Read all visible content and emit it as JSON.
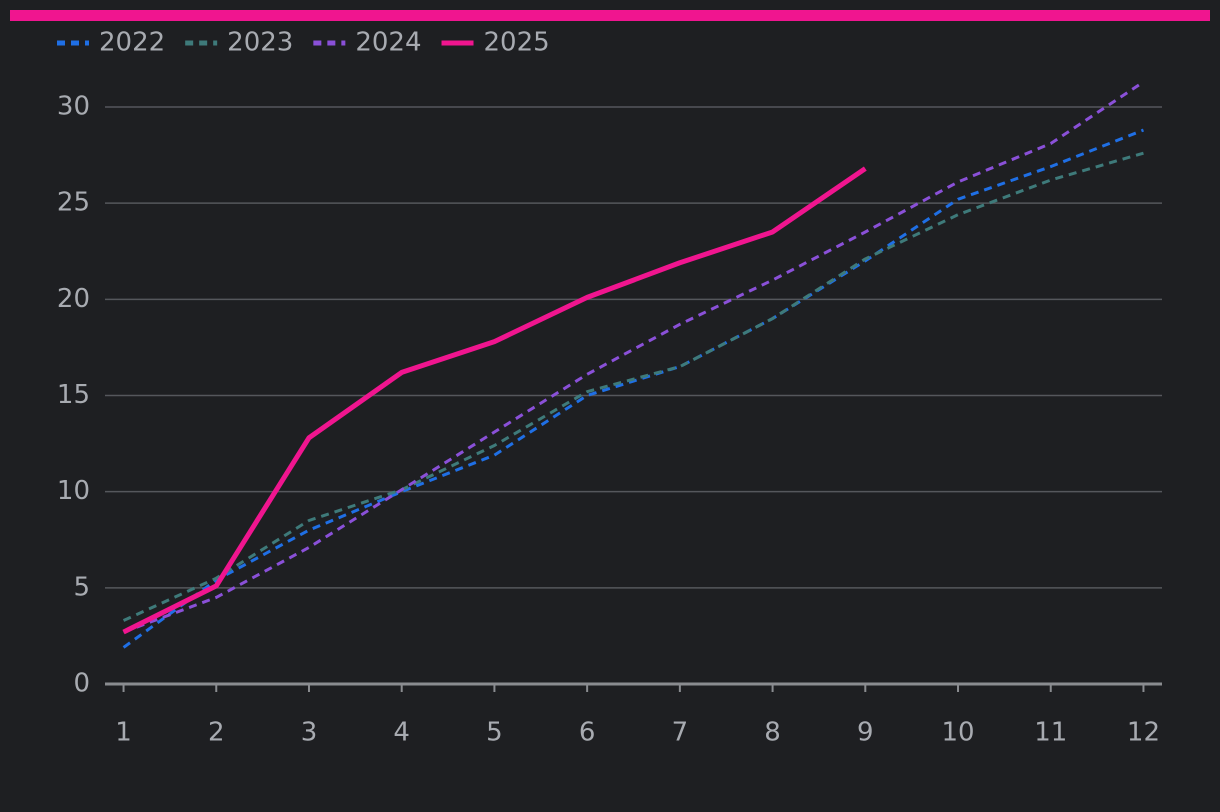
{
  "chart_data": {
    "type": "line",
    "x": [
      1,
      2,
      3,
      4,
      5,
      6,
      7,
      8,
      9,
      10,
      11,
      12
    ],
    "xlim": [
      0.8,
      12.2
    ],
    "xticks": [
      1,
      2,
      3,
      4,
      5,
      6,
      7,
      8,
      9,
      10,
      11,
      12
    ],
    "ylim": [
      0,
      32
    ],
    "yticks": [
      0,
      5,
      10,
      15,
      20,
      25,
      30
    ],
    "grid": true,
    "legend": "top-left",
    "series": [
      {
        "name": "2022",
        "color": "#1f6fe5",
        "dashed": true,
        "values": [
          1.9,
          5.4,
          8.0,
          10.0,
          11.9,
          15.0,
          16.5,
          19.0,
          22.0,
          25.2,
          26.9,
          28.8
        ]
      },
      {
        "name": "2023",
        "color": "#3e7a7a",
        "dashed": true,
        "values": [
          3.3,
          5.5,
          8.5,
          10.1,
          12.4,
          15.2,
          16.5,
          19.0,
          22.1,
          24.4,
          26.2,
          27.6
        ]
      },
      {
        "name": "2024",
        "color": "#8a50d8",
        "dashed": true,
        "values": [
          2.7,
          4.5,
          7.1,
          10.1,
          13.1,
          16.1,
          18.7,
          21.0,
          23.5,
          26.1,
          28.1,
          31.3
        ]
      },
      {
        "name": "2025",
        "color": "#f0158f",
        "dashed": false,
        "values": [
          2.7,
          5.1,
          12.8,
          16.2,
          17.8,
          20.1,
          21.9,
          23.5,
          26.8,
          null,
          null,
          null
        ]
      }
    ]
  }
}
